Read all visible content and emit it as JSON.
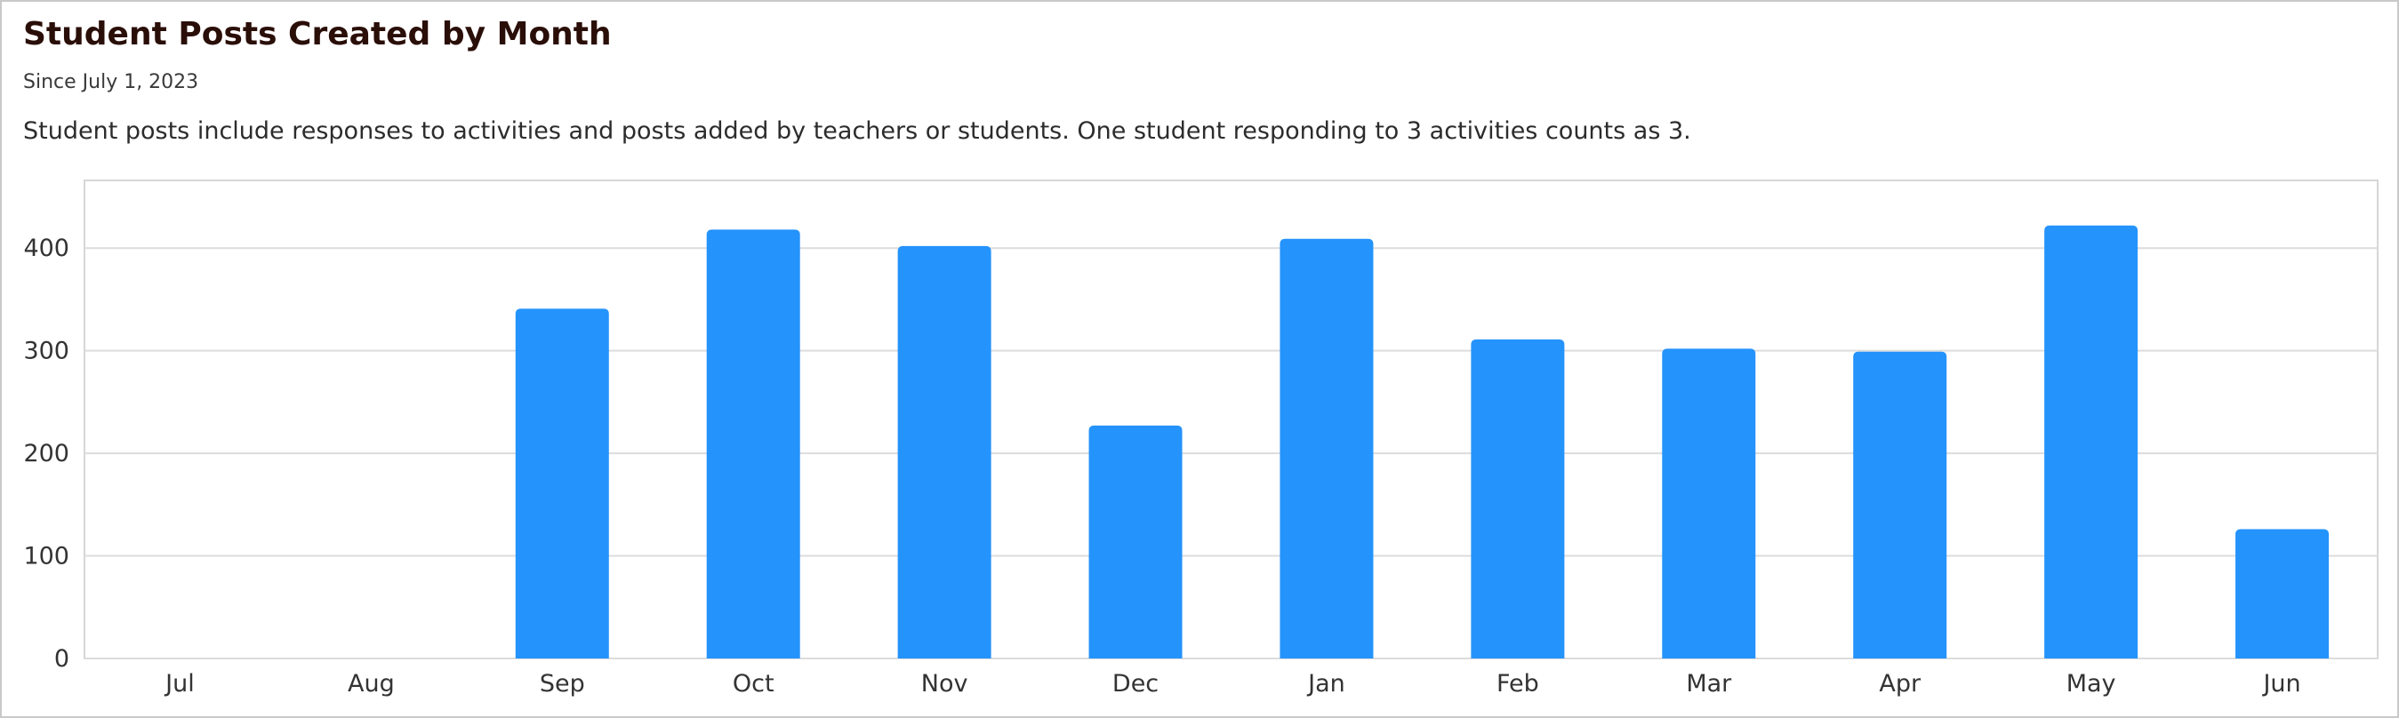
{
  "header": {
    "title": "Student Posts Created by Month",
    "subtitle": "Since July 1, 2023",
    "description": "Student posts include responses to activities and posts added by teachers or students. One student responding to 3 activities counts as 3."
  },
  "colors": {
    "bar": "#2493fc",
    "grid": "#dcdcdc",
    "plot_border": "#d6d6d6"
  },
  "chart_data": {
    "type": "bar",
    "categories": [
      "Jul",
      "Aug",
      "Sep",
      "Oct",
      "Nov",
      "Dec",
      "Jan",
      "Feb",
      "Mar",
      "Apr",
      "May",
      "Jun"
    ],
    "values": [
      0,
      0,
      341,
      418,
      402,
      227,
      409,
      311,
      302,
      299,
      422,
      126
    ],
    "ylim": [
      0,
      466
    ],
    "yticks": [
      0,
      100,
      200,
      300,
      400
    ],
    "grid": true,
    "legend": "none"
  }
}
